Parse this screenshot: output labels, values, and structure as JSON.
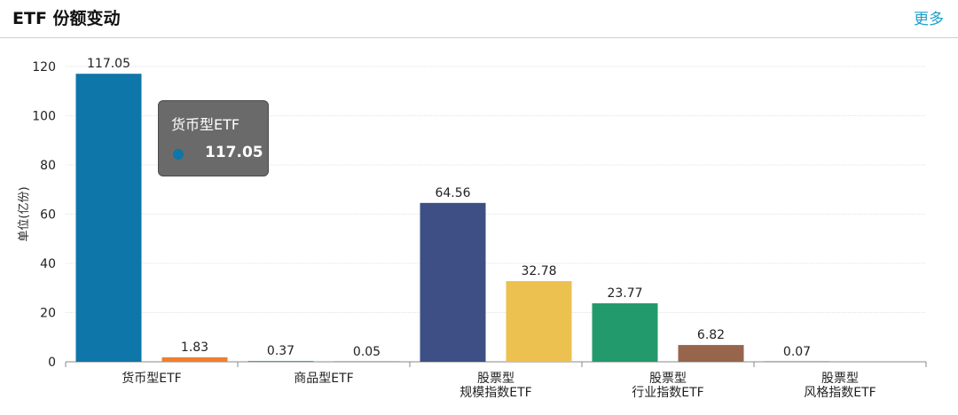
{
  "header": {
    "title": "ETF 份额变动",
    "more_label": "更多"
  },
  "tooltip": {
    "category": "货币型ETF",
    "value": "117.05",
    "color": "#0e76a8"
  },
  "chart_data": {
    "type": "bar",
    "ylabel": "单位(亿份)",
    "ylim": [
      0,
      120
    ],
    "yticks": [
      0,
      20,
      40,
      60,
      80,
      100,
      120
    ],
    "groups": [
      {
        "label": [
          "货币型ETF"
        ]
      },
      {
        "label": [
          "商品型ETF"
        ]
      },
      {
        "label": [
          "股票型",
          "规模指数ETF"
        ]
      },
      {
        "label": [
          "股票型",
          "行业指数ETF"
        ]
      },
      {
        "label": [
          "股票型",
          "风格指数ETF"
        ]
      }
    ],
    "bars": [
      {
        "value": 117.05,
        "label": "117.05",
        "color": "#0e76a8"
      },
      {
        "value": 1.83,
        "label": "1.83",
        "color": "#f07f2e"
      },
      {
        "value": 0.37,
        "label": "0.37",
        "color": "#2bb5a7"
      },
      {
        "value": 0.05,
        "label": "0.05",
        "color": "#c9a8a0"
      },
      {
        "value": 64.56,
        "label": "64.56",
        "color": "#3d4f84"
      },
      {
        "value": 32.78,
        "label": "32.78",
        "color": "#ecc14f"
      },
      {
        "value": 23.77,
        "label": "23.77",
        "color": "#239a6b"
      },
      {
        "value": 6.82,
        "label": "6.82",
        "color": "#97654c"
      },
      {
        "value": 0.07,
        "label": "0.07",
        "color": "#b0b0b0"
      }
    ]
  }
}
